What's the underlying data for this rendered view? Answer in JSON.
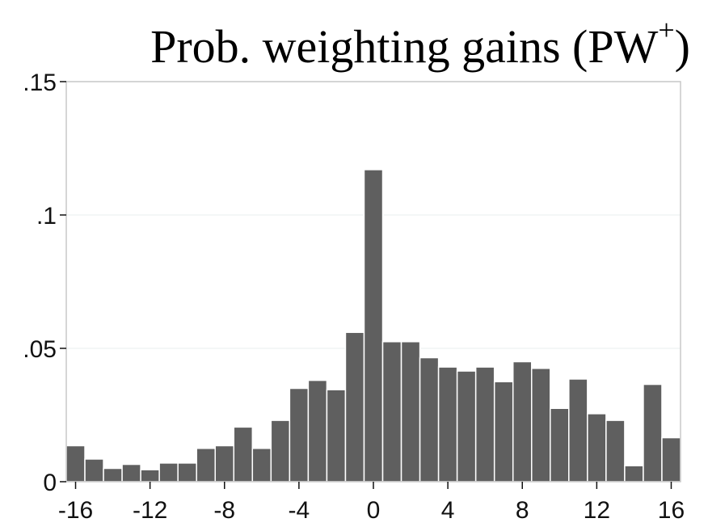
{
  "chart_data": {
    "type": "bar",
    "title": "Prob. weighting gains (PW",
    "title_superscript": "+",
    "title_suffix": ")",
    "xlabel": "",
    "ylabel": "",
    "bin_width": 1,
    "x": [
      -16,
      -15,
      -14,
      -13,
      -12,
      -11,
      -10,
      -9,
      -8,
      -7,
      -6,
      -5,
      -4,
      -3,
      -2,
      -1,
      0,
      1,
      2,
      3,
      4,
      5,
      6,
      7,
      8,
      9,
      10,
      11,
      12,
      13,
      14,
      15,
      16
    ],
    "values": [
      0.0135,
      0.0085,
      0.005,
      0.0065,
      0.0045,
      0.007,
      0.007,
      0.0125,
      0.0135,
      0.0205,
      0.0125,
      0.023,
      0.035,
      0.038,
      0.0345,
      0.056,
      0.117,
      0.0525,
      0.0525,
      0.0465,
      0.043,
      0.0415,
      0.043,
      0.0375,
      0.045,
      0.0425,
      0.0275,
      0.0385,
      0.0255,
      0.023,
      0.006,
      0.0365,
      0.0165
    ],
    "xlim": [
      -16.5,
      16.5
    ],
    "ylim": [
      0,
      0.15
    ],
    "xticks": [
      -16,
      -12,
      -8,
      -4,
      0,
      4,
      8,
      12,
      16
    ],
    "xtick_labels": [
      "-16",
      "-12",
      "-8",
      "-4",
      "0",
      "4",
      "8",
      "12",
      "16"
    ],
    "yticks": [
      0,
      0.05,
      0.1,
      0.15
    ],
    "ytick_labels": [
      "0",
      ".05",
      ".1",
      ".15"
    ],
    "grid": true,
    "bar_color": "#5f5f5f",
    "bar_edge_color": "#ffffff"
  }
}
